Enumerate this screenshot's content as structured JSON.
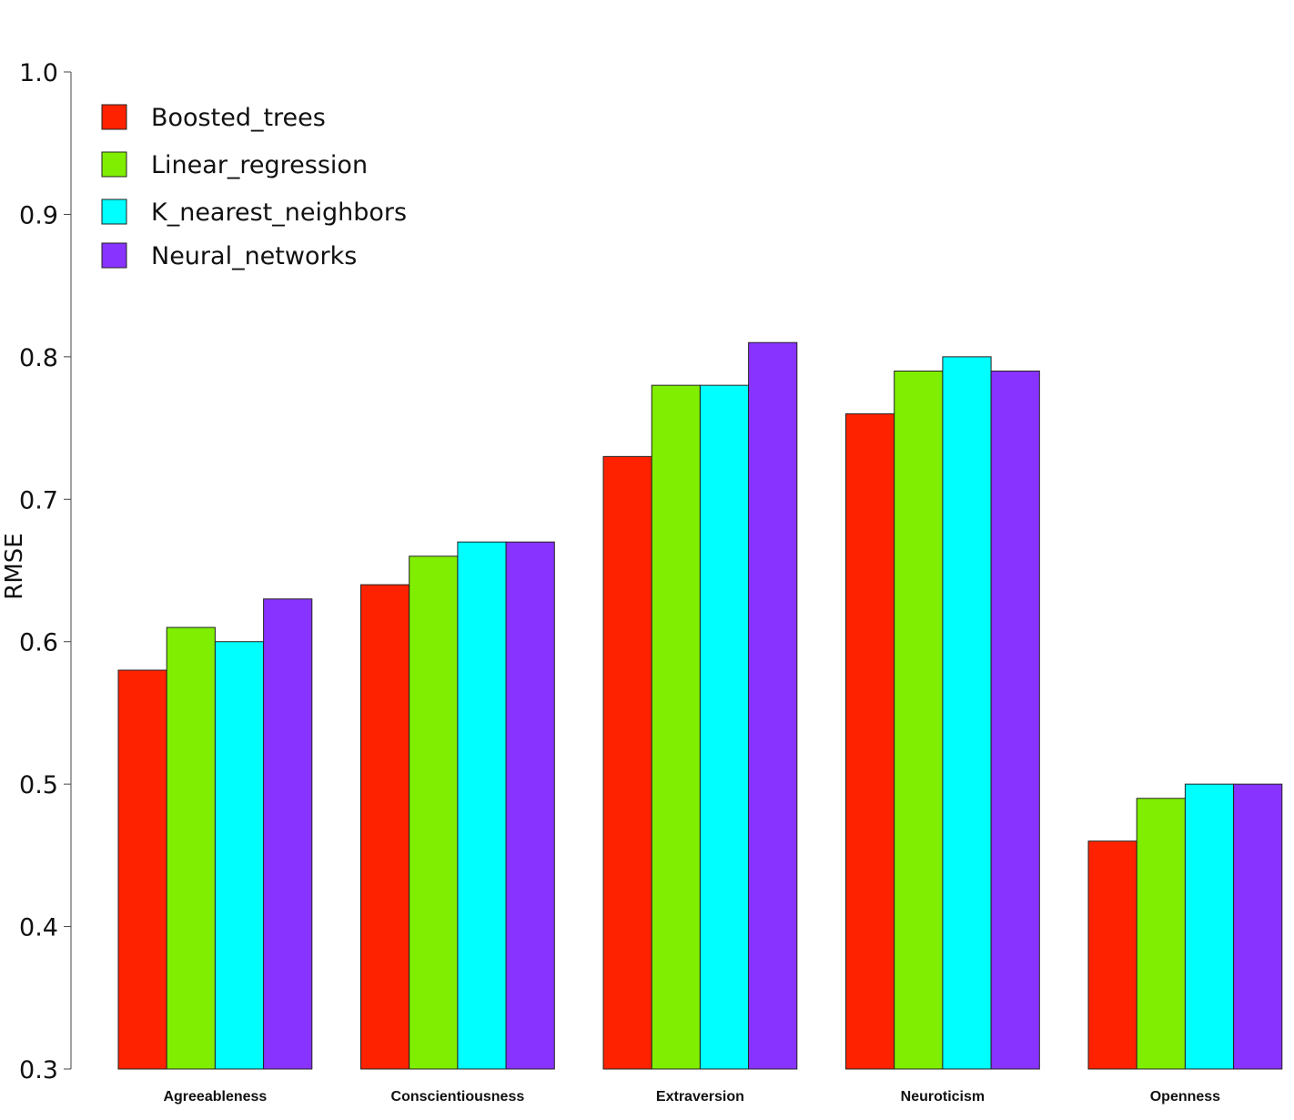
{
  "chart_data": {
    "type": "bar",
    "title": "",
    "xlabel": "",
    "ylabel": "RMSE",
    "ylim": [
      0.3,
      1.0
    ],
    "yticks": [
      0.3,
      0.4,
      0.5,
      0.6,
      0.7,
      0.8,
      0.9,
      1.0
    ],
    "ytick_labels": [
      "0.3",
      "0.4",
      "0.5",
      "0.6",
      "0.7",
      "0.8",
      "0.9",
      "1.0"
    ],
    "grid": false,
    "legend_position": "top-left",
    "categories": [
      "Agreeableness",
      "Conscientiousness",
      "Extraversion",
      "Neuroticism",
      "Openness"
    ],
    "series": [
      {
        "name": "Boosted_trees",
        "color": "#ff2200",
        "values": [
          0.58,
          0.64,
          0.73,
          0.76,
          0.46
        ]
      },
      {
        "name": "Linear_regression",
        "color": "#80ee00",
        "values": [
          0.61,
          0.66,
          0.78,
          0.79,
          0.49
        ]
      },
      {
        "name": "K_nearest_neighbors",
        "color": "#00ffff",
        "values": [
          0.6,
          0.67,
          0.78,
          0.8,
          0.5
        ]
      },
      {
        "name": "Neural_networks",
        "color": "#8833ff",
        "values": [
          0.63,
          0.67,
          0.81,
          0.79,
          0.5
        ]
      }
    ]
  }
}
